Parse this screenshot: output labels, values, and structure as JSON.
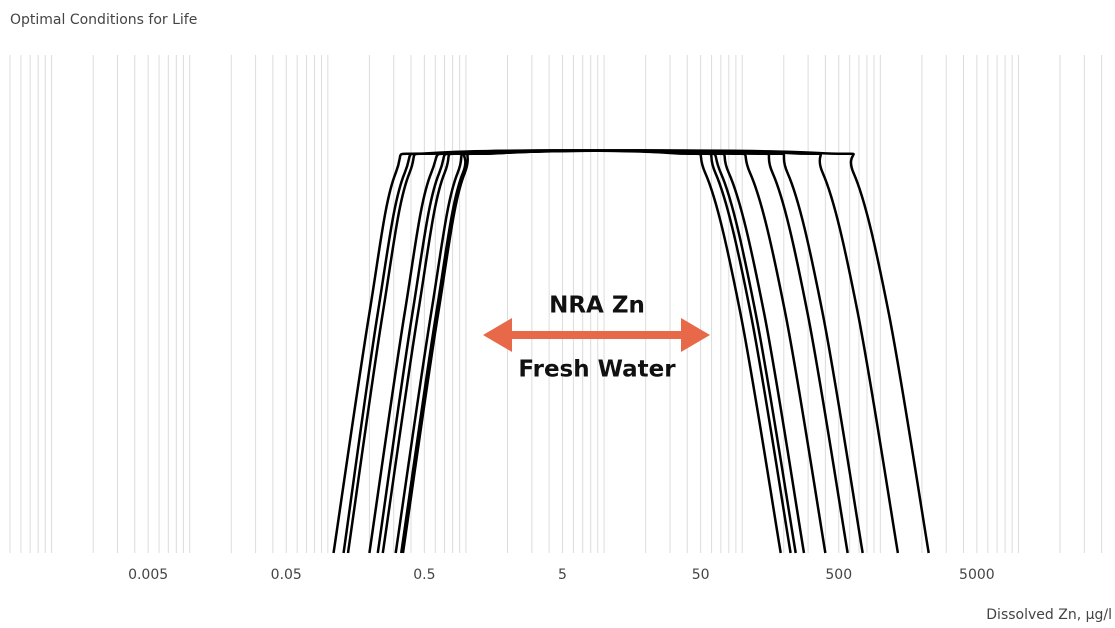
{
  "chart_data": {
    "type": "line",
    "title": "Optimal Conditions for Life",
    "x_label": "Dissolved Zn, µg/l",
    "annotations": [
      "NRA Zn",
      "Fresh Water"
    ],
    "log_x": true,
    "xlim": [
      0.0005,
      50000
    ],
    "ylim": [
      0,
      1
    ],
    "xticks": [
      0.005,
      0.05,
      0.5,
      5,
      50,
      500,
      5000
    ],
    "xgrid": [
      0.0005,
      0.0006,
      0.0007,
      0.0008,
      0.0009,
      0.001,
      0.002,
      0.003,
      0.004,
      0.005,
      0.006,
      0.007,
      0.008,
      0.009,
      0.01,
      0.02,
      0.03,
      0.04,
      0.05,
      0.06,
      0.07,
      0.08,
      0.09,
      0.1,
      0.2,
      0.3,
      0.4,
      0.5,
      0.6,
      0.7,
      0.8,
      0.9,
      1,
      2,
      3,
      4,
      5,
      6,
      7,
      8,
      9,
      10,
      20,
      30,
      40,
      50,
      60,
      70,
      80,
      90,
      100,
      200,
      300,
      400,
      500,
      600,
      700,
      800,
      900,
      1000,
      2000,
      3000,
      4000,
      5000,
      6000,
      7000,
      8000,
      9000,
      10000,
      20000,
      30000,
      40000
    ],
    "grid": true,
    "color": "#000000",
    "series": [
      {
        "x": [
          0.11,
          0.2,
          0.31,
          0.58,
          30,
          54,
          97,
          190
        ],
        "values": [
          0,
          0.6,
          0.95,
          1,
          1,
          0.95,
          0.6,
          0
        ]
      },
      {
        "x": [
          0.13,
          0.23,
          0.36,
          0.69,
          36,
          64,
          115,
          224
        ],
        "values": [
          0,
          0.6,
          0.95,
          1,
          1,
          0.95,
          0.6,
          0
        ]
      },
      {
        "x": [
          0.14,
          0.25,
          0.39,
          0.74,
          44,
          80,
          144,
          280
        ],
        "values": [
          0,
          0.6,
          0.95,
          1,
          1,
          0.95,
          0.6,
          0
        ]
      },
      {
        "x": [
          0.2,
          0.36,
          0.56,
          1.06,
          39,
          70,
          125,
          244
        ],
        "values": [
          0,
          0.6,
          0.95,
          1,
          1,
          0.95,
          0.6,
          0
        ]
      },
      {
        "x": [
          0.23,
          0.41,
          0.64,
          1.22,
          63,
          114,
          205,
          400
        ],
        "values": [
          0,
          0.6,
          0.95,
          1,
          1,
          0.95,
          0.6,
          0
        ]
      },
      {
        "x": [
          0.25,
          0.45,
          0.7,
          1.33,
          92,
          166,
          297,
          580
        ],
        "values": [
          0,
          0.6,
          0.95,
          1,
          1,
          0.95,
          0.6,
          0
        ]
      },
      {
        "x": [
          0.31,
          0.56,
          0.87,
          1.64,
          118,
          213,
          382,
          745
        ],
        "values": [
          0,
          0.6,
          0.95,
          1,
          1,
          0.95,
          0.6,
          0
        ]
      },
      {
        "x": [
          0.35,
          0.63,
          0.98,
          1.86,
          213,
          383,
          687,
          1340
        ],
        "values": [
          0,
          0.6,
          0.95,
          1,
          1,
          0.95,
          0.6,
          0
        ]
      },
      {
        "x": [
          0.34,
          0.61,
          0.95,
          1.8,
          356,
          640,
          1150,
          2240
        ],
        "values": [
          0,
          0.6,
          0.95,
          1,
          1,
          0.95,
          0.6,
          0
        ]
      }
    ]
  }
}
